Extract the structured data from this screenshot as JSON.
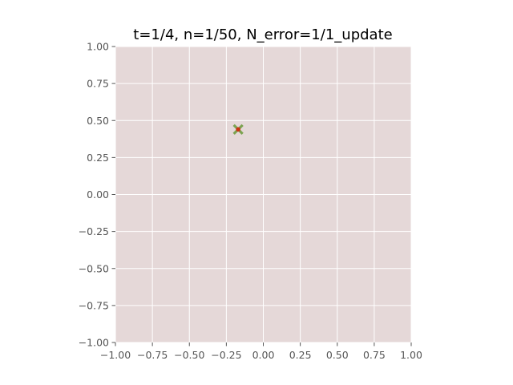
{
  "chart_data": {
    "type": "scatter",
    "title": "t=1/4, n=1/50, N_error=1/1_update",
    "xlabel": "",
    "ylabel": "",
    "xlim": [
      -1.0,
      1.0
    ],
    "ylim": [
      -1.0,
      1.0
    ],
    "xticks": [
      "−1.00",
      "−0.75",
      "−0.50",
      "−0.25",
      "0.00",
      "0.25",
      "0.50",
      "0.75",
      "1.00"
    ],
    "yticks": [
      "−1.00",
      "−0.75",
      "−0.50",
      "−0.25",
      "0.00",
      "0.25",
      "0.50",
      "0.75",
      "1.00"
    ],
    "grid": true,
    "background_color": "#e5d8d8",
    "grid_color": "#ffffff",
    "series": [
      {
        "marker": "x",
        "color": "#6a9a3a",
        "points": [
          [
            -0.17,
            0.44
          ]
        ]
      },
      {
        "marker": "dot",
        "color": "#cc3311",
        "points": [
          [
            -0.17,
            0.44
          ]
        ]
      }
    ]
  }
}
